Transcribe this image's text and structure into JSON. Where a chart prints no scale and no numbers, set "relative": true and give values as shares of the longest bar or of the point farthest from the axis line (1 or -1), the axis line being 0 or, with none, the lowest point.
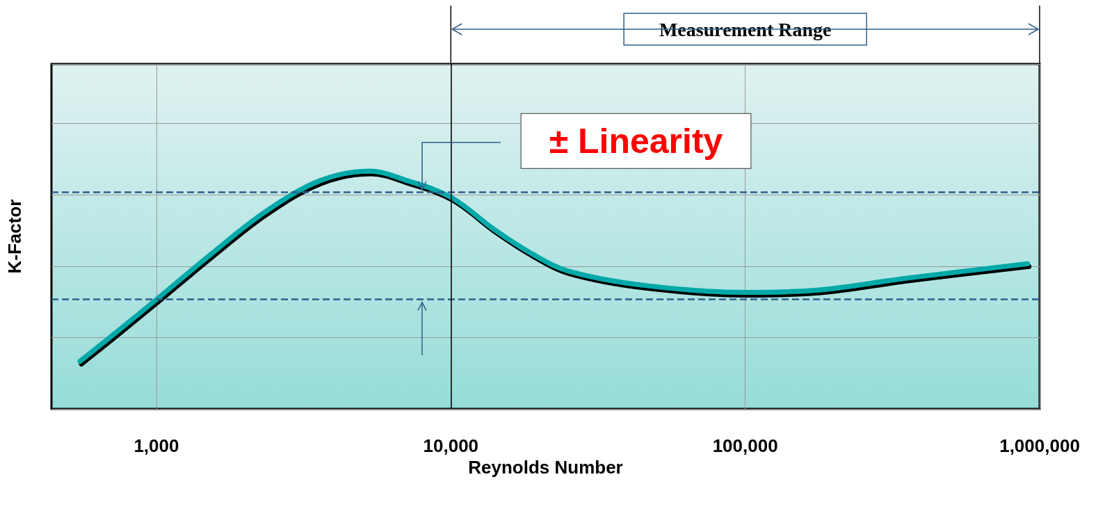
{
  "chart_data": {
    "type": "line",
    "xlabel": "Reynolds Number",
    "ylabel": "K-Factor",
    "relative": true,
    "log": "x",
    "grid": true,
    "marker": "none",
    "line_style": "solid",
    "xlim": [
      440,
      1000000
    ],
    "xticks": [
      {
        "value": 1000,
        "label": "1,000"
      },
      {
        "value": 10000,
        "label": "10,000"
      },
      {
        "value": 100000,
        "label": "100,000"
      },
      {
        "value": 1000000,
        "label": "1,000,000"
      }
    ],
    "x": [
      550,
      710,
      1000,
      1530,
      2350,
      3600,
      5300,
      7100,
      10000,
      14200,
      19000,
      25000,
      45000,
      100000,
      178000,
      355000,
      910000
    ],
    "series": [
      {
        "color": "#00a8a8",
        "values": [
          0.2,
          0.31,
          0.46,
          0.65,
          0.83,
          0.96,
          1,
          0.96,
          0.89,
          0.75,
          0.65,
          0.58,
          0.52,
          0.49,
          0.5,
          0.55,
          0.61
        ]
      }
    ],
    "ref_lines": [
      {
        "axis": "y",
        "value": 0.91,
        "label": "± Linearity",
        "color": "#2e5f8a",
        "line_style": "dashed"
      },
      {
        "axis": "y",
        "value": 0.46,
        "label": null,
        "color": "#2e5f8a",
        "line_style": "dashed"
      },
      {
        "axis": "x",
        "value": 10000,
        "label": null,
        "color": "#000000",
        "line_style": "solid"
      }
    ],
    "annotations": [
      "Measurement Range"
    ]
  }
}
